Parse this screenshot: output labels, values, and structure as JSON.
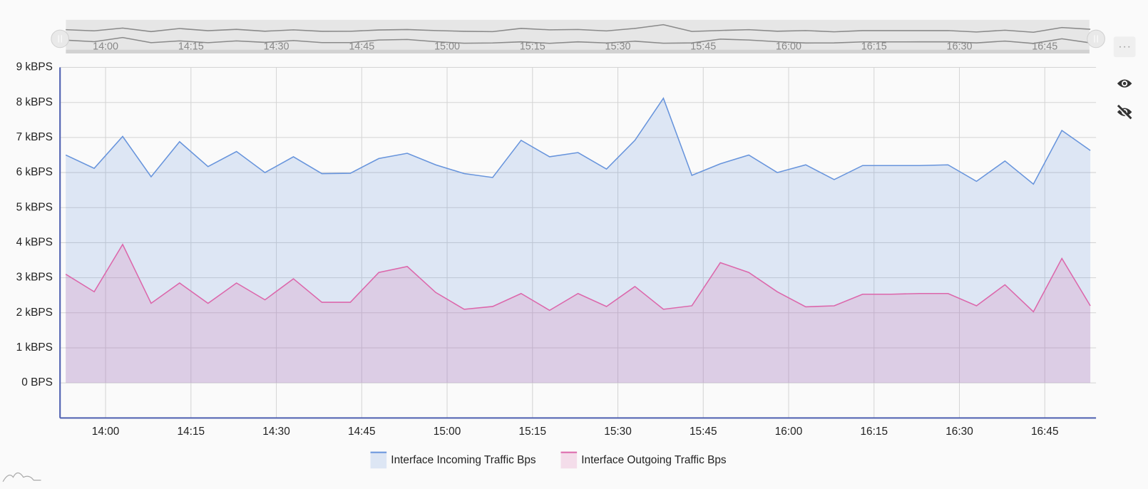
{
  "chart_data": {
    "type": "area",
    "x": [
      "13:53",
      "13:58",
      "14:03",
      "14:08",
      "14:13",
      "14:18",
      "14:23",
      "14:28",
      "14:33",
      "14:38",
      "14:43",
      "14:48",
      "14:53",
      "14:58",
      "15:03",
      "15:08",
      "15:13",
      "15:18",
      "15:23",
      "15:28",
      "15:33",
      "15:38",
      "15:43",
      "15:48",
      "15:53",
      "15:58",
      "16:03",
      "16:08",
      "16:13",
      "16:18",
      "16:23",
      "16:28",
      "16:33",
      "16:38",
      "16:43",
      "16:48",
      "16:53"
    ],
    "series": [
      {
        "name": "Interface Incoming Traffic Bps",
        "color": "#6794dc",
        "values": [
          6.5,
          6.12,
          7.03,
          5.88,
          6.88,
          6.17,
          6.6,
          6.0,
          6.45,
          5.97,
          5.98,
          6.4,
          6.55,
          6.22,
          5.97,
          5.86,
          6.92,
          6.45,
          6.57,
          6.1,
          6.92,
          8.12,
          5.92,
          6.25,
          6.5,
          6.0,
          6.22,
          5.8,
          6.2,
          6.2,
          6.2,
          6.22,
          5.75,
          6.33,
          5.67,
          7.2,
          6.63
        ]
      },
      {
        "name": "Interface Outgoing Traffic Bps",
        "color": "#dc67ab",
        "values": [
          3.1,
          2.6,
          3.95,
          2.27,
          2.85,
          2.27,
          2.85,
          2.37,
          2.97,
          2.3,
          2.3,
          3.15,
          3.32,
          2.58,
          2.1,
          2.18,
          2.55,
          2.07,
          2.55,
          2.18,
          2.75,
          2.1,
          2.2,
          3.43,
          3.15,
          2.6,
          2.17,
          2.2,
          2.53,
          2.53,
          2.55,
          2.55,
          2.2,
          2.8,
          2.03,
          3.55,
          2.2
        ]
      }
    ],
    "xlim": [
      "13:52",
      "16:54"
    ],
    "xticks": [
      "14:00",
      "14:15",
      "14:30",
      "14:45",
      "15:00",
      "15:15",
      "15:30",
      "15:45",
      "16:00",
      "16:15",
      "16:30",
      "16:45"
    ],
    "ylim": [
      -1,
      9
    ],
    "yticks": [
      {
        "value": 0,
        "label": "0 BPS"
      },
      {
        "value": 1,
        "label": "1 kBPS"
      },
      {
        "value": 2,
        "label": "2 kBPS"
      },
      {
        "value": 3,
        "label": "3 kBPS"
      },
      {
        "value": 4,
        "label": "4 kBPS"
      },
      {
        "value": 5,
        "label": "5 kBPS"
      },
      {
        "value": 6,
        "label": "6 kBPS"
      },
      {
        "value": 7,
        "label": "7 kBPS"
      },
      {
        "value": 8,
        "label": "8 kBPS"
      },
      {
        "value": 9,
        "label": "9 kBPS"
      }
    ],
    "grid": true,
    "legend": "bottom"
  }
}
